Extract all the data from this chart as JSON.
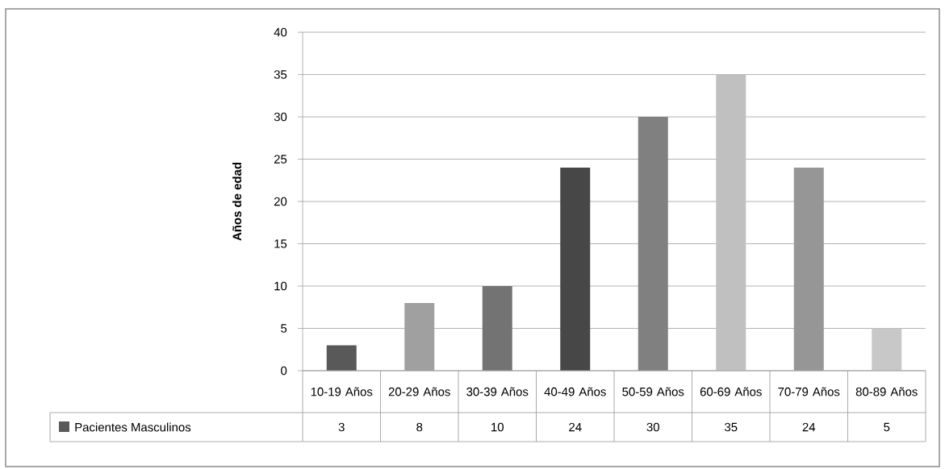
{
  "chart_data": {
    "type": "bar",
    "ylabel": "Años de edad",
    "categories": [
      "10-19 Años",
      "20-29 Años",
      "30-39 Años",
      "40-49 Años",
      "50-59 Años",
      "60-69 Años",
      "70-79 Años",
      "80-89 Años"
    ],
    "series": [
      {
        "name": "Pacientes Masculinos",
        "color": "#595959",
        "values": [
          3,
          8,
          10,
          24,
          30,
          35,
          24,
          5
        ],
        "colors": [
          "#595959",
          "#a0a0a0",
          "#737373",
          "#474747",
          "#808080",
          "#c0c0c0",
          "#969696",
          "#c8c8c8"
        ]
      }
    ],
    "ylim": [
      0,
      40
    ],
    "yticks": [
      0,
      5,
      10,
      15,
      20,
      25,
      30,
      35,
      40
    ],
    "grid": "y",
    "legend": "bottom",
    "data_labels": true
  }
}
